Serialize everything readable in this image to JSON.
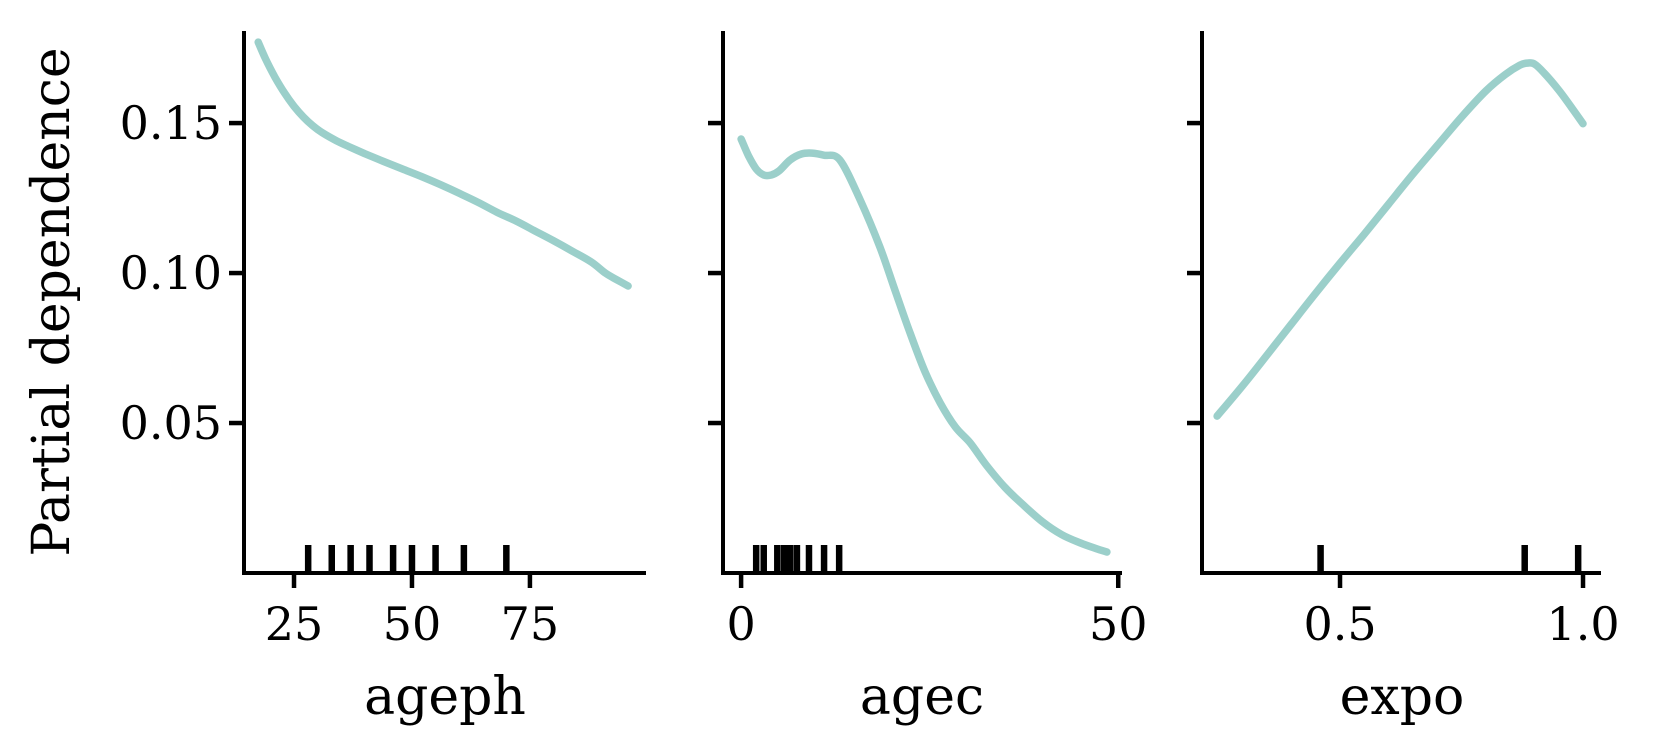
{
  "chart_data": {
    "type": "line",
    "title": "",
    "ylabel": "Partial dependence",
    "ylim": [
      0,
      0.1807
    ],
    "yticks": [
      0.05,
      0.1,
      0.15
    ],
    "ytick_labels": [
      "0.05",
      "0.10",
      "0.15"
    ],
    "grid": false,
    "legend": null,
    "colors": {
      "curve": "#9bcfca",
      "axis": "#000000",
      "rug": "#000000",
      "background": "#ffffff"
    },
    "panels": [
      {
        "feature": "ageph",
        "xlabel": "ageph",
        "xlim": [
          14.4,
          99.6
        ],
        "xticks": [
          25,
          50,
          75
        ],
        "xtick_labels": [
          "25",
          "50",
          "75"
        ],
        "curve": {
          "x": [
            17.4,
            19,
            21,
            23,
            25,
            27,
            29,
            31,
            34,
            37,
            40,
            44,
            48,
            52,
            56,
            60,
            64,
            68,
            72,
            76,
            80,
            84,
            88,
            91,
            93.5,
            95.8
          ],
          "y": [
            0.177,
            0.1713,
            0.1652,
            0.16,
            0.1556,
            0.152,
            0.1491,
            0.1468,
            0.1441,
            0.1419,
            0.1398,
            0.1372,
            0.1347,
            0.1322,
            0.1295,
            0.1266,
            0.1236,
            0.1203,
            0.1174,
            0.1141,
            0.1108,
            0.1073,
            0.1037,
            0.1,
            0.0977,
            0.0957
          ]
        },
        "rug": [
          28,
          33,
          37,
          41,
          46,
          50,
          55,
          61,
          70
        ]
      },
      {
        "feature": "agec",
        "xlabel": "agec",
        "xlim": [
          -2.4,
          50.5
        ],
        "xticks": [
          0,
          50
        ],
        "xtick_labels": [
          "0",
          "50"
        ],
        "curve": {
          "x": [
            0,
            1,
            2,
            3,
            4,
            5,
            6.5,
            8,
            9.4,
            11,
            13.1,
            15.8,
            18.4,
            20.4,
            22.4,
            24.4,
            26.4,
            28.4,
            30.4,
            32.5,
            35,
            37.5,
            40,
            42.5,
            45,
            47,
            48.5
          ],
          "y": [
            0.1447,
            0.139,
            0.1347,
            0.1327,
            0.1327,
            0.134,
            0.1377,
            0.1397,
            0.14,
            0.1393,
            0.1377,
            0.1243,
            0.1087,
            0.0943,
            0.08,
            0.067,
            0.0567,
            0.0487,
            0.0433,
            0.036,
            0.0285,
            0.0225,
            0.017,
            0.0128,
            0.01,
            0.0082,
            0.007
          ]
        },
        "rug": [
          2,
          3,
          4.8,
          5.7,
          6.5,
          7.4,
          9,
          11,
          13
        ]
      },
      {
        "feature": "expo",
        "xlabel": "expo",
        "xlim": [
          0.216,
          1.037
        ],
        "xticks": [
          0.5,
          1.0
        ],
        "xtick_labels": [
          "0.5",
          "1.0"
        ],
        "curve": {
          "x": [
            0.247,
            0.3,
            0.35,
            0.4,
            0.45,
            0.5,
            0.55,
            0.6,
            0.65,
            0.7,
            0.75,
            0.8,
            0.84,
            0.87,
            0.885,
            0.9,
            0.92,
            0.95,
            0.975,
            1.0
          ],
          "y": [
            0.0523,
            0.0625,
            0.0727,
            0.083,
            0.0933,
            0.1033,
            0.113,
            0.123,
            0.133,
            0.1425,
            0.152,
            0.1607,
            0.1662,
            0.1693,
            0.17,
            0.1697,
            0.1667,
            0.161,
            0.1555,
            0.1498
          ]
        },
        "rug": [
          0.46,
          0.88,
          0.99
        ]
      }
    ]
  }
}
